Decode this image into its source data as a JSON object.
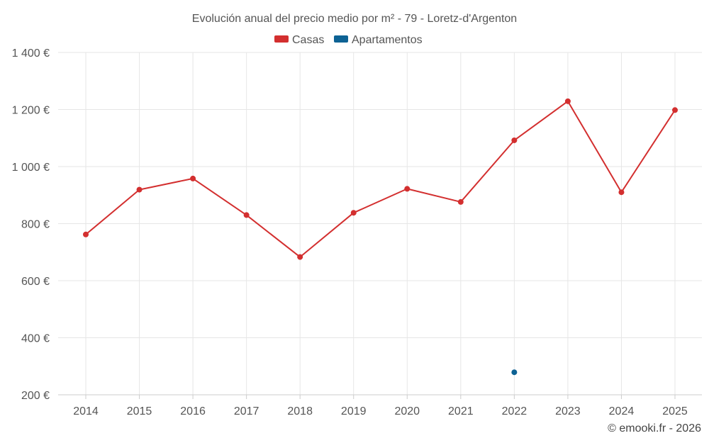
{
  "chart_data": {
    "type": "line",
    "title": "Evolución anual del precio medio por m² - 79 - Loretz-d'Argenton",
    "categories": [
      "2014",
      "2015",
      "2016",
      "2017",
      "2018",
      "2019",
      "2020",
      "2021",
      "2022",
      "2023",
      "2024",
      "2025"
    ],
    "ylim": [
      200,
      1400
    ],
    "yticks": [
      200,
      400,
      600,
      800,
      1000,
      1200,
      1400
    ],
    "ytick_labels": [
      "200 €",
      "400 €",
      "600 €",
      "800 €",
      "1 000 €",
      "1 200 €",
      "1 400 €"
    ],
    "grid": true,
    "legend_position": "top-center",
    "series": [
      {
        "name": "Casas",
        "color": "#d32f2f",
        "values": [
          762,
          919,
          958,
          830,
          683,
          838,
          922,
          876,
          1092,
          1229,
          910,
          1198
        ]
      },
      {
        "name": "Apartamentos",
        "color": "#0d6294",
        "values": [
          null,
          null,
          null,
          null,
          null,
          null,
          null,
          null,
          279,
          null,
          null,
          null
        ]
      }
    ]
  },
  "footer": {
    "credit": "© emooki.fr - 2026"
  }
}
